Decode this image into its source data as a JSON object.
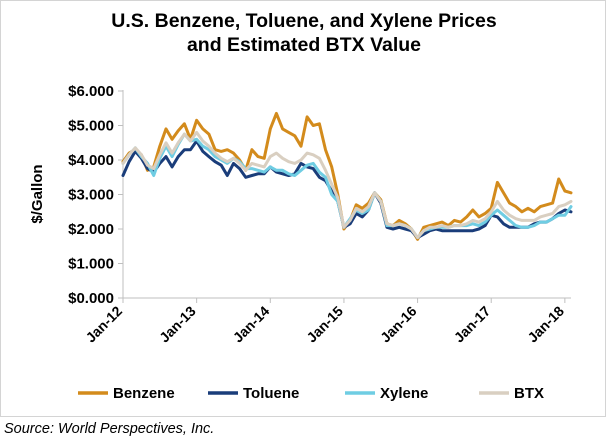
{
  "chart_data": {
    "type": "line",
    "title": "U.S. Benzene, Toluene, and Xylene Prices and Estimated BTX Value",
    "title_lines": [
      "U.S. Benzene, Toluene, and Xylene Prices",
      "and Estimated BTX Value"
    ],
    "xlabel": "",
    "ylabel": "$/Gallon",
    "ylim": [
      0,
      6
    ],
    "yticks": [
      0,
      1,
      2,
      3,
      4,
      5,
      6
    ],
    "ytick_labels": [
      "$0.000",
      "$1.000",
      "$2.000",
      "$3.000",
      "$4.000",
      "$5.000",
      "$6.000"
    ],
    "xlim": [
      "2012-01",
      "2018-02"
    ],
    "xticks": [
      "2012-01",
      "2013-01",
      "2014-01",
      "2015-01",
      "2016-01",
      "2017-01",
      "2018-01"
    ],
    "xtick_labels": [
      "Jan-12",
      "Jan-13",
      "Jan-14",
      "Jan-15",
      "Jan-16",
      "Jan-17",
      "Jan-18"
    ],
    "grid": {
      "horizontal": false,
      "vertical": false
    },
    "legend_position": "bottom",
    "x": [
      "2012-01",
      "2012-02",
      "2012-03",
      "2012-04",
      "2012-05",
      "2012-06",
      "2012-07",
      "2012-08",
      "2012-09",
      "2012-10",
      "2012-11",
      "2012-12",
      "2013-01",
      "2013-02",
      "2013-03",
      "2013-04",
      "2013-05",
      "2013-06",
      "2013-07",
      "2013-08",
      "2013-09",
      "2013-10",
      "2013-11",
      "2013-12",
      "2014-01",
      "2014-02",
      "2014-03",
      "2014-04",
      "2014-05",
      "2014-06",
      "2014-07",
      "2014-08",
      "2014-09",
      "2014-10",
      "2014-11",
      "2014-12",
      "2015-01",
      "2015-02",
      "2015-03",
      "2015-04",
      "2015-05",
      "2015-06",
      "2015-07",
      "2015-08",
      "2015-09",
      "2015-10",
      "2015-11",
      "2015-12",
      "2016-01",
      "2016-02",
      "2016-03",
      "2016-04",
      "2016-05",
      "2016-06",
      "2016-07",
      "2016-08",
      "2016-09",
      "2016-10",
      "2016-11",
      "2016-12",
      "2017-01",
      "2017-02",
      "2017-03",
      "2017-04",
      "2017-05",
      "2017-06",
      "2017-07",
      "2017-08",
      "2017-09",
      "2017-10",
      "2017-11",
      "2017-12",
      "2018-01",
      "2018-02"
    ],
    "series": [
      {
        "name": "Benzene",
        "color": "#d38b1c",
        "values": [
          3.95,
          4.2,
          4.3,
          4.15,
          3.7,
          3.8,
          4.4,
          4.9,
          4.6,
          4.85,
          5.05,
          4.6,
          5.15,
          4.9,
          4.75,
          4.3,
          4.25,
          4.3,
          4.2,
          4.0,
          3.7,
          4.3,
          4.1,
          4.05,
          4.9,
          5.35,
          4.9,
          4.8,
          4.7,
          4.4,
          5.25,
          5.0,
          5.05,
          4.3,
          3.8,
          3.0,
          2.0,
          2.25,
          2.7,
          2.6,
          2.75,
          3.05,
          2.85,
          2.15,
          2.1,
          2.25,
          2.15,
          2.0,
          1.7,
          2.05,
          2.1,
          2.15,
          2.2,
          2.1,
          2.25,
          2.2,
          2.35,
          2.55,
          2.35,
          2.45,
          2.6,
          3.35,
          3.05,
          2.75,
          2.65,
          2.5,
          2.6,
          2.5,
          2.65,
          2.7,
          2.75,
          3.45,
          3.1,
          3.05
        ]
      },
      {
        "name": "Toluene",
        "color": "#1a3d7a",
        "values": [
          3.55,
          3.95,
          4.25,
          4.05,
          3.75,
          3.65,
          3.9,
          4.1,
          3.8,
          4.1,
          4.3,
          4.3,
          4.55,
          4.25,
          4.1,
          3.95,
          3.85,
          3.55,
          3.9,
          3.75,
          3.5,
          3.55,
          3.6,
          3.6,
          3.8,
          3.65,
          3.6,
          3.55,
          3.6,
          3.9,
          3.8,
          3.75,
          3.5,
          3.4,
          3.1,
          2.8,
          2.05,
          2.15,
          2.45,
          2.35,
          2.55,
          3.05,
          2.75,
          2.05,
          2.0,
          2.05,
          2.0,
          1.95,
          1.75,
          1.85,
          1.95,
          2.0,
          1.95,
          1.95,
          1.95,
          1.95,
          1.95,
          1.95,
          2.0,
          2.1,
          2.4,
          2.35,
          2.15,
          2.05,
          2.05,
          2.05,
          2.05,
          2.15,
          2.2,
          2.2,
          2.3,
          2.45,
          2.55,
          2.5
        ]
      },
      {
        "name": "Xylene",
        "color": "#6fcde3",
        "values": [
          3.9,
          4.15,
          4.35,
          4.1,
          3.9,
          3.55,
          4.05,
          4.4,
          4.1,
          4.45,
          4.75,
          4.55,
          4.6,
          4.4,
          4.3,
          4.1,
          4.0,
          3.9,
          4.05,
          3.95,
          3.75,
          3.75,
          3.7,
          3.65,
          3.8,
          3.7,
          3.7,
          3.6,
          3.55,
          3.7,
          3.85,
          3.9,
          3.65,
          3.5,
          3.0,
          2.8,
          2.05,
          2.3,
          2.55,
          2.45,
          2.55,
          3.05,
          2.8,
          2.1,
          2.1,
          2.15,
          2.1,
          2.0,
          1.75,
          1.95,
          2.0,
          2.05,
          2.05,
          2.05,
          2.1,
          2.1,
          2.1,
          2.15,
          2.1,
          2.2,
          2.4,
          2.55,
          2.4,
          2.25,
          2.1,
          2.05,
          2.05,
          2.1,
          2.2,
          2.2,
          2.3,
          2.4,
          2.4,
          2.65
        ]
      },
      {
        "name": "BTX",
        "color": "#d9cfc1",
        "values": [
          3.9,
          4.15,
          4.35,
          4.15,
          3.85,
          3.75,
          4.15,
          4.5,
          4.2,
          4.5,
          4.75,
          4.55,
          4.8,
          4.55,
          4.4,
          4.2,
          4.05,
          3.95,
          4.05,
          3.9,
          3.7,
          3.9,
          3.85,
          3.8,
          4.1,
          4.2,
          4.05,
          3.95,
          3.9,
          4.0,
          4.2,
          4.15,
          4.05,
          3.7,
          3.3,
          2.9,
          2.05,
          2.25,
          2.6,
          2.5,
          2.65,
          3.05,
          2.8,
          2.15,
          2.1,
          2.15,
          2.1,
          2.0,
          1.75,
          1.95,
          2.05,
          2.05,
          2.1,
          2.05,
          2.1,
          2.1,
          2.15,
          2.25,
          2.2,
          2.3,
          2.5,
          2.8,
          2.55,
          2.4,
          2.3,
          2.25,
          2.25,
          2.25,
          2.35,
          2.4,
          2.45,
          2.65,
          2.7,
          2.8
        ]
      }
    ]
  },
  "source_text": "Source: World Perspectives, Inc."
}
